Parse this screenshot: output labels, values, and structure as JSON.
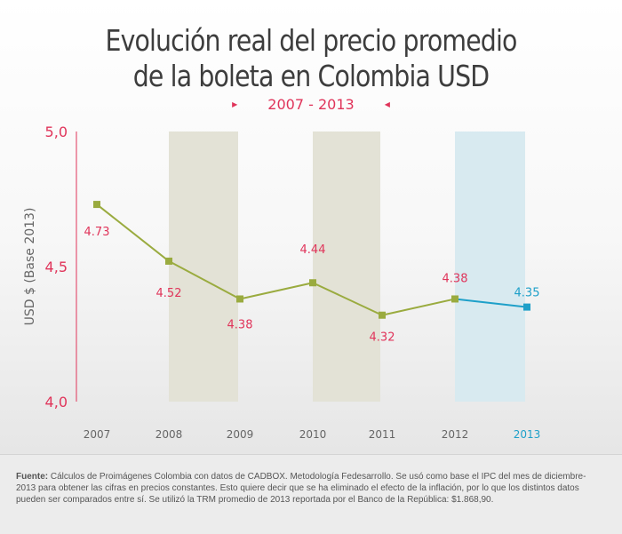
{
  "colors": {
    "accent": "#e0345a",
    "line": "#9aab3f",
    "highlight": "#1ea0c9",
    "band_olive": "#e3e2d6",
    "band_blue": "#d8eaf0",
    "axis_text": "#666666",
    "title": "#3d3d3d"
  },
  "chart_data": {
    "type": "line",
    "title_line1": "Evolución real del precio promedio",
    "title_line2": "de la boleta en Colombia USD",
    "subtitle": "2007 - 2013",
    "ylabel": "USD $ (Base 2013)",
    "ylim": [
      4.0,
      5.0
    ],
    "yticks": [
      {
        "value": 4.0,
        "label": "4,0"
      },
      {
        "value": 4.5,
        "label": "4,5"
      },
      {
        "value": 5.0,
        "label": "5,0"
      }
    ],
    "categories": [
      "2007",
      "2008",
      "2009",
      "2010",
      "2011",
      "2012",
      "2013"
    ],
    "values": [
      4.73,
      4.52,
      4.38,
      4.44,
      4.32,
      4.38,
      4.35
    ],
    "labels": [
      "4.73",
      "4.52",
      "4.38",
      "4.44",
      "4.32",
      "4.38",
      "4.35"
    ],
    "highlighted_category": "2013",
    "shaded_bands": [
      {
        "from": "2008",
        "to": "2009",
        "color": "olive"
      },
      {
        "from": "2010",
        "to": "2011",
        "color": "olive"
      },
      {
        "from": "2012",
        "to": "2013",
        "color": "blue"
      }
    ],
    "grid": false
  },
  "footer": {
    "source_label": "Fuente:",
    "source_text": "Cálculos de Proimágenes Colombia con datos de CADBOX. Metodología Fedesarrollo. Se usó como base el IPC del mes de diciembre-2013 para obtener las cifras en precios constantes. Esto quiere decir que se ha eliminado el efecto de la inflación, por lo que los distintos datos pueden ser comparados entre sí. Se utilizó la TRM promedio de 2013 reportada por el Banco de la República: $1.868,90."
  }
}
